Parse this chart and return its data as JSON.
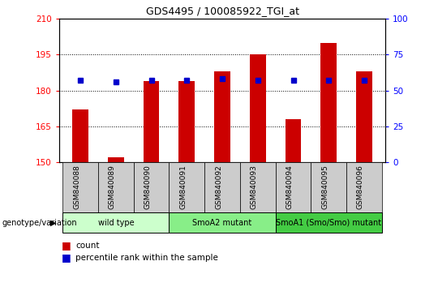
{
  "title": "GDS4495 / 100085922_TGI_at",
  "samples": [
    "GSM840088",
    "GSM840089",
    "GSM840090",
    "GSM840091",
    "GSM840092",
    "GSM840093",
    "GSM840094",
    "GSM840095",
    "GSM840096"
  ],
  "counts": [
    172,
    152,
    184,
    184,
    188,
    195,
    168,
    200,
    188
  ],
  "percentile_ranks": [
    57,
    56,
    57,
    57,
    58,
    57,
    57,
    57,
    57
  ],
  "bar_color": "#cc0000",
  "dot_color": "#0000cc",
  "ylim_left": [
    150,
    210
  ],
  "ylim_right": [
    0,
    100
  ],
  "yticks_left": [
    150,
    165,
    180,
    195,
    210
  ],
  "yticks_right": [
    0,
    25,
    50,
    75,
    100
  ],
  "groups": [
    {
      "label": "wild type",
      "indices": [
        0,
        1,
        2
      ],
      "color": "#ccffcc"
    },
    {
      "label": "SmoA2 mutant",
      "indices": [
        3,
        4,
        5
      ],
      "color": "#88ee88"
    },
    {
      "label": "SmoA1 (Smo/Smo) mutant",
      "indices": [
        6,
        7,
        8
      ],
      "color": "#44cc44"
    }
  ],
  "group_label_prefix": "genotype/variation",
  "legend_count_label": "count",
  "legend_percentile_label": "percentile rank within the sample",
  "tick_bg": "#cccccc",
  "bar_width": 0.45
}
